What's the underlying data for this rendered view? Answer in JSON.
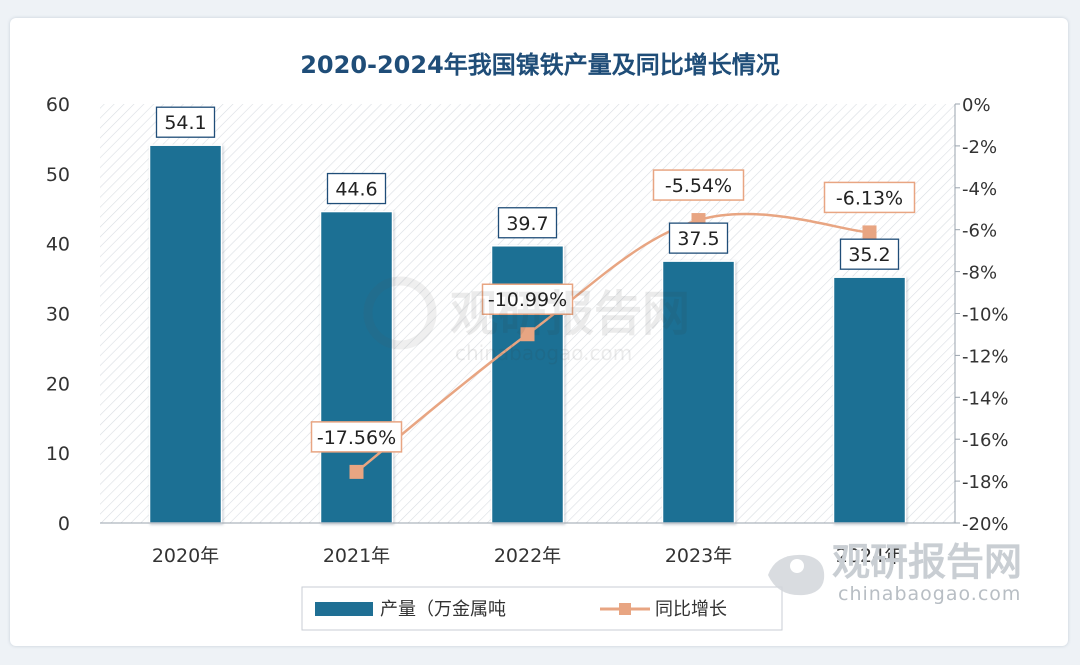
{
  "chart_data": {
    "type": "bar+line",
    "title": "2020-2024年我国镍铁产量及同比增长情况",
    "categories": [
      "2020年",
      "2021年",
      "2022年",
      "2023年",
      "2024年"
    ],
    "series": [
      {
        "name": "产量（万金属吨",
        "type": "bar",
        "axis": "left",
        "values": [
          54.1,
          44.6,
          39.7,
          37.5,
          35.2
        ],
        "labels": [
          "54.1",
          "44.6",
          "39.7",
          "37.5",
          "35.2"
        ],
        "color": "#1f6f94"
      },
      {
        "name": "同比增长",
        "type": "line",
        "axis": "right",
        "values": [
          null,
          -17.56,
          -10.99,
          -5.54,
          -6.13
        ],
        "labels": [
          "",
          "-17.56%",
          "-10.99%",
          "-5.54%",
          "-6.13%"
        ],
        "color": "#e8a582"
      }
    ],
    "left_axis": {
      "ylim": [
        0,
        60
      ],
      "ticks": [
        "0",
        "10",
        "20",
        "30",
        "40",
        "50",
        "60"
      ]
    },
    "right_axis": {
      "ylim": [
        -20,
        0
      ],
      "ticks": [
        "0%",
        "-2%",
        "-4%",
        "-6%",
        "-8%",
        "-10%",
        "-12%",
        "-14%",
        "-16%",
        "-18%",
        "-20%"
      ]
    },
    "legend_position": "bottom"
  },
  "watermark": {
    "brand": "观研报告网",
    "url": "chinabaogao.com"
  },
  "colors": {
    "bar": "#1f6f94",
    "line": "#e8a582",
    "title": "#1f4d78",
    "axis_text": "#333333"
  }
}
